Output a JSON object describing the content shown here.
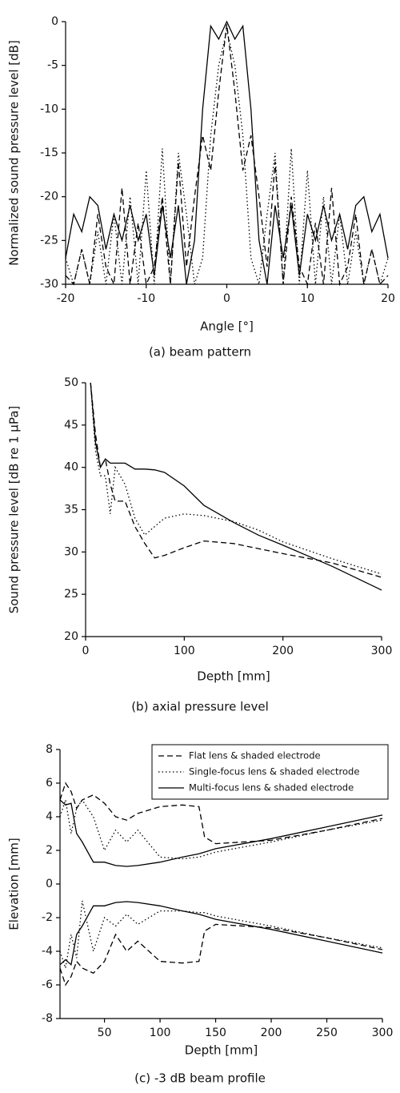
{
  "chart_data": [
    {
      "type": "line",
      "caption": "(a) beam pattern",
      "xlabel": "Angle [°]",
      "ylabel": "Normalized sound pressure level [dB]",
      "xlim": [
        -20,
        20
      ],
      "ylim": [
        -30,
        0
      ],
      "xticks": [
        -20,
        -10,
        0,
        10,
        20
      ],
      "yticks": [
        0,
        -5,
        -10,
        -15,
        -20,
        -25,
        -30
      ],
      "x": [
        -20,
        -19,
        -18,
        -17,
        -16,
        -15,
        -14,
        -13,
        -12,
        -11,
        -10,
        -9,
        -8,
        -7,
        -6,
        -5,
        -4,
        -3,
        -2,
        -1,
        0,
        1,
        2,
        3,
        4,
        5,
        6,
        7,
        8,
        9,
        10,
        11,
        12,
        13,
        14,
        15,
        16,
        17,
        18,
        19,
        20
      ],
      "series": [
        {
          "dash": "solid",
          "color": "#000000",
          "values": [
            -27,
            -22,
            -24,
            -20,
            -21,
            -26,
            -22,
            -25,
            -21,
            -25,
            -22,
            -29,
            -21,
            -27,
            -21,
            -30,
            -25,
            -10,
            -0.5,
            -2,
            0,
            -2,
            -0.5,
            -10,
            -25,
            -30,
            -21,
            -27,
            -21,
            -29,
            -22,
            -25,
            -21,
            -25,
            -22,
            -26,
            -21,
            -20,
            -24,
            -22,
            -27
          ]
        },
        {
          "dash": "dashed",
          "color": "#000000",
          "values": [
            -29,
            -30,
            -26,
            -30,
            -22,
            -28,
            -30,
            -19,
            -30,
            -23,
            -30,
            -28,
            -20,
            -30,
            -16,
            -28,
            -20,
            -13,
            -17,
            -8,
            -0.3,
            -8,
            -17,
            -13,
            -20,
            -28,
            -16,
            -30,
            -20,
            -28,
            -30,
            -23,
            -30,
            -19,
            -30,
            -28,
            -22,
            -30,
            -26,
            -30,
            -29
          ]
        },
        {
          "dash": "dotted",
          "color": "#000000",
          "values": [
            -27,
            -30,
            -26,
            -30,
            -24,
            -30,
            -22,
            -30,
            -20,
            -30,
            -17,
            -30,
            -14.5,
            -30,
            -15,
            -22,
            -30,
            -27,
            -13,
            -5,
            -1,
            -5,
            -13,
            -27,
            -30,
            -22,
            -15,
            -30,
            -14.5,
            -30,
            -17,
            -30,
            -20,
            -30,
            -22,
            -30,
            -24,
            -30,
            -26,
            -30,
            -27
          ]
        }
      ]
    },
    {
      "type": "line",
      "caption": "(b) axial pressure level",
      "xlabel": "Depth [mm]",
      "ylabel": "Sound pressure level [dB re 1 μPa]",
      "xlim": [
        0,
        300
      ],
      "ylim": [
        20,
        50
      ],
      "xticks": [
        0,
        100,
        200,
        300
      ],
      "yticks": [
        20,
        25,
        30,
        35,
        40,
        45,
        50
      ],
      "x": [
        5,
        10,
        15,
        20,
        25,
        30,
        40,
        50,
        60,
        70,
        80,
        100,
        120,
        150,
        175,
        200,
        250,
        300
      ],
      "series": [
        {
          "dash": "solid",
          "color": "#000000",
          "values": [
            50,
            43,
            40,
            41,
            40.5,
            40.5,
            40.5,
            39.8,
            39.8,
            39.7,
            39.4,
            37.8,
            35.5,
            33.5,
            32,
            30.8,
            28.3,
            25.5
          ]
        },
        {
          "dash": "dashed",
          "color": "#000000",
          "values": [
            50,
            44,
            40,
            41,
            38,
            36,
            36,
            33,
            31,
            29.3,
            29.6,
            30.5,
            31.3,
            31,
            30.4,
            29.8,
            28.7,
            27
          ]
        },
        {
          "dash": "dotted",
          "color": "#000000",
          "values": [
            50,
            42,
            39,
            39,
            34.5,
            40,
            38,
            34,
            32,
            33,
            34,
            34.5,
            34.3,
            33.6,
            32.6,
            31.2,
            29.2,
            27.4
          ]
        }
      ]
    },
    {
      "type": "line",
      "caption": "(c) -3 dB beam profile",
      "xlabel": "Depth [mm]",
      "ylabel": "Elevation [mm]",
      "xlim": [
        10,
        300
      ],
      "ylim": [
        -8,
        8
      ],
      "xticks": [
        50,
        100,
        150,
        200,
        250,
        300
      ],
      "yticks": [
        8,
        6,
        4,
        2,
        0,
        -2,
        -4,
        -6,
        -8
      ],
      "legend": "upper right",
      "x": [
        10,
        15,
        20,
        25,
        30,
        40,
        50,
        60,
        70,
        80,
        100,
        120,
        135,
        140,
        150,
        200,
        250,
        300
      ],
      "series": [
        {
          "name": "Flat lens & shaded electrode",
          "dash": "dashed",
          "color": "#000000",
          "upper": [
            5,
            6,
            5.5,
            4.5,
            5,
            5.3,
            4.8,
            4,
            3.8,
            4.2,
            4.6,
            4.7,
            4.6,
            2.8,
            2.4,
            2.6,
            3.2,
            3.9
          ],
          "lower": [
            -5,
            -6,
            -5.5,
            -4.6,
            -5,
            -5.3,
            -4.6,
            -3,
            -4,
            -3.4,
            -4.6,
            -4.7,
            -4.6,
            -2.8,
            -2.4,
            -2.6,
            -3.2,
            -3.9
          ]
        },
        {
          "name": "Single-focus lens & shaded electrode",
          "dash": "dotted",
          "color": "#000000",
          "upper": [
            4,
            5,
            3,
            4.5,
            5,
            4,
            2,
            3.2,
            2.5,
            3.2,
            1.6,
            1.5,
            1.6,
            1.7,
            1.9,
            2.5,
            3.2,
            3.8
          ],
          "lower": [
            -4,
            -5,
            -3,
            -4.4,
            -1,
            -4,
            -2,
            -2.5,
            -1.8,
            -2.4,
            -1.6,
            -1.6,
            -1.7,
            -1.7,
            -1.9,
            -2.5,
            -3.2,
            -3.8
          ]
        },
        {
          "name": "Multi-focus lens & shaded electrode",
          "dash": "solid",
          "color": "#000000",
          "upper": [
            5,
            4.7,
            4.8,
            3,
            2.5,
            1.3,
            1.3,
            1.1,
            1.05,
            1.1,
            1.3,
            1.6,
            1.8,
            1.9,
            2.1,
            2.7,
            3.4,
            4.1
          ],
          "lower": [
            -4.8,
            -4.5,
            -4.8,
            -3,
            -2.5,
            -1.3,
            -1.3,
            -1.1,
            -1.05,
            -1.1,
            -1.3,
            -1.6,
            -1.8,
            -1.9,
            -2.1,
            -2.7,
            -3.4,
            -4.1
          ]
        }
      ]
    }
  ]
}
